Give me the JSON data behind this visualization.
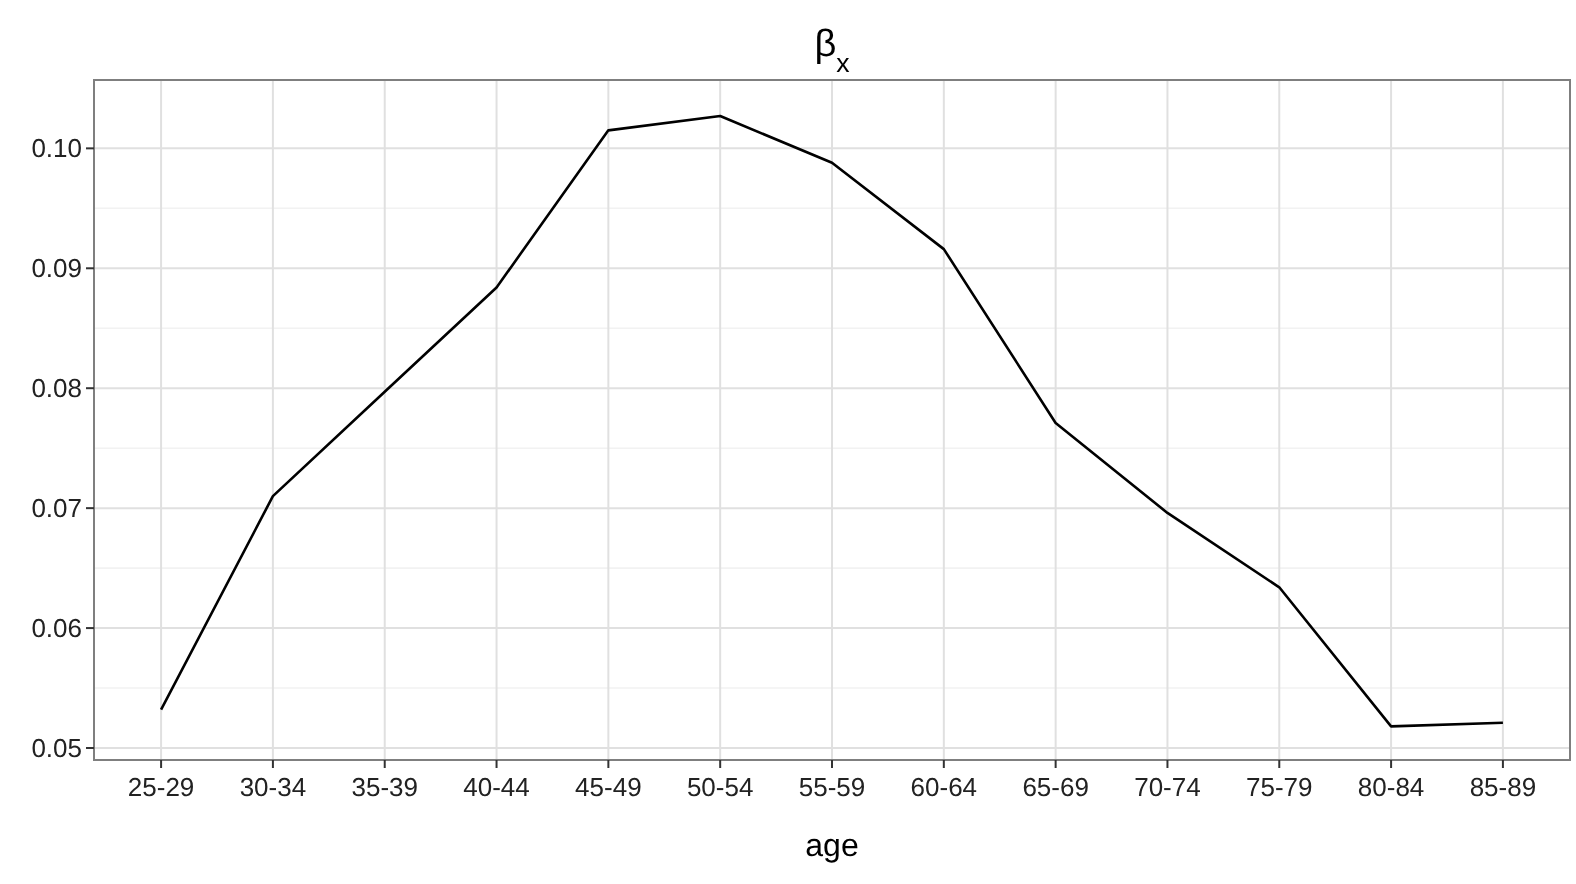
{
  "chart_data": {
    "type": "line",
    "title": "β$_{x}$",
    "xlabel": "age",
    "categories": [
      "25-29",
      "30-34",
      "35-39",
      "40-44",
      "45-49",
      "50-54",
      "55-59",
      "60-64",
      "65-69",
      "70-74",
      "75-79",
      "80-84",
      "85-89"
    ],
    "series": [
      {
        "color": "#000000",
        "values": [
          0.0532,
          0.071,
          0.0797,
          0.0884,
          0.1015,
          0.1027,
          0.0988,
          0.0916,
          0.0771,
          0.0696,
          0.0634,
          0.0518,
          0.0521
        ]
      }
    ],
    "ylim": [
      0.049,
      0.1057
    ],
    "yticks": [
      {
        "value": 0.05,
        "label": "0.05"
      },
      {
        "value": 0.06,
        "label": "0.06"
      },
      {
        "value": 0.07,
        "label": "0.07"
      },
      {
        "value": 0.08,
        "label": "0.08"
      },
      {
        "value": 0.09,
        "label": "0.09"
      },
      {
        "value": 0.1,
        "label": "0.10"
      }
    ],
    "grid": true,
    "marker": "none",
    "line_style": "solid"
  }
}
